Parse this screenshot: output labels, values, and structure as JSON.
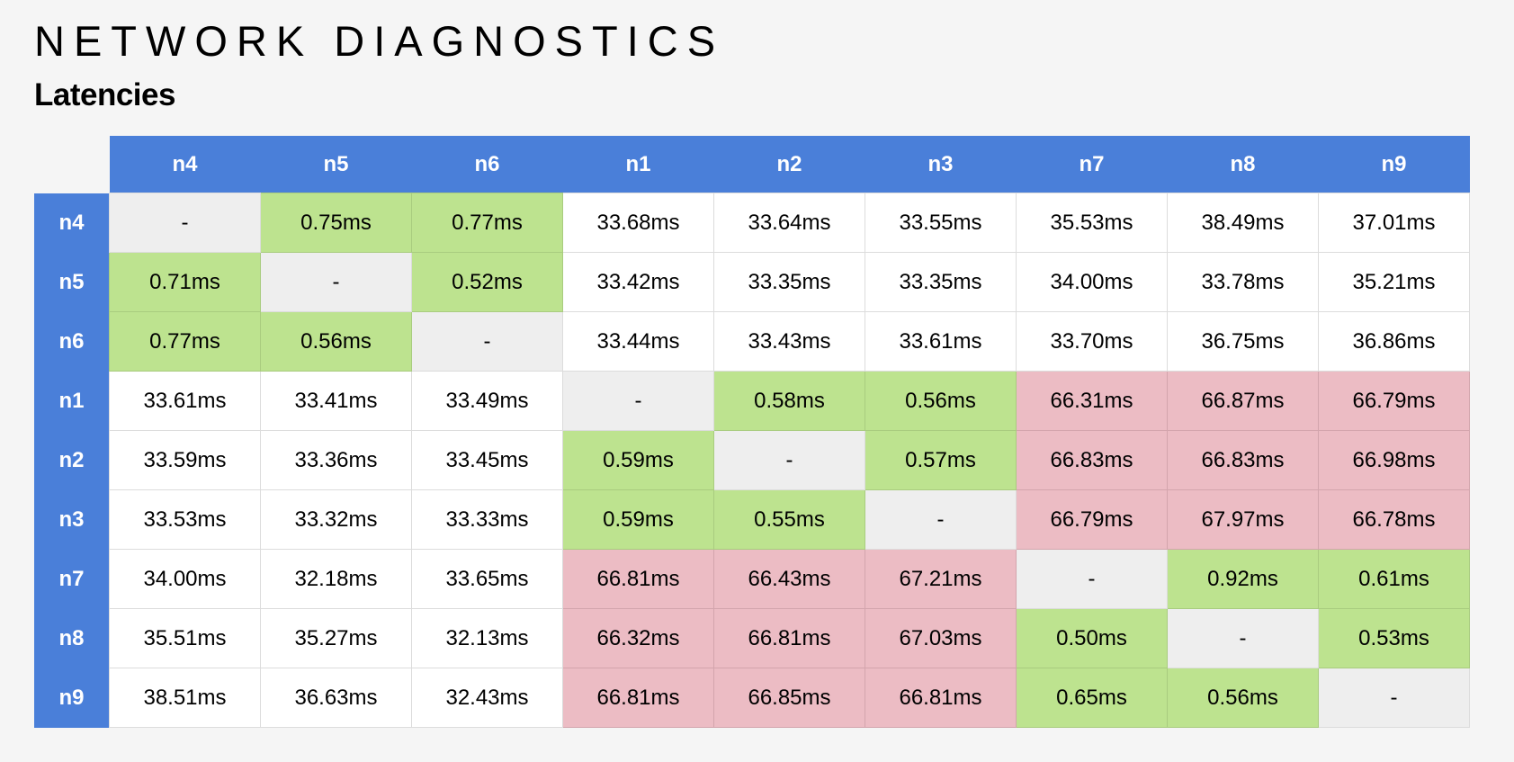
{
  "header": {
    "title": "NETWORK DIAGNOSTICS",
    "subtitle": "Latencies"
  },
  "colors": {
    "header_bg": "#4a7fd9",
    "fast": "#bde38f",
    "slow": "#ecbcc4",
    "self": "#eeeeee",
    "normal": "#ffffff"
  },
  "table": {
    "columns": [
      "n4",
      "n5",
      "n6",
      "n1",
      "n2",
      "n3",
      "n7",
      "n8",
      "n9"
    ],
    "rows": [
      {
        "label": "n4",
        "cells": [
          "-",
          "0.75ms",
          "0.77ms",
          "33.68ms",
          "33.64ms",
          "33.55ms",
          "35.53ms",
          "38.49ms",
          "37.01ms"
        ],
        "status": [
          "self",
          "fast",
          "fast",
          "normal",
          "normal",
          "normal",
          "normal",
          "normal",
          "normal"
        ]
      },
      {
        "label": "n5",
        "cells": [
          "0.71ms",
          "-",
          "0.52ms",
          "33.42ms",
          "33.35ms",
          "33.35ms",
          "34.00ms",
          "33.78ms",
          "35.21ms"
        ],
        "status": [
          "fast",
          "self",
          "fast",
          "normal",
          "normal",
          "normal",
          "normal",
          "normal",
          "normal"
        ]
      },
      {
        "label": "n6",
        "cells": [
          "0.77ms",
          "0.56ms",
          "-",
          "33.44ms",
          "33.43ms",
          "33.61ms",
          "33.70ms",
          "36.75ms",
          "36.86ms"
        ],
        "status": [
          "fast",
          "fast",
          "self",
          "normal",
          "normal",
          "normal",
          "normal",
          "normal",
          "normal"
        ]
      },
      {
        "label": "n1",
        "cells": [
          "33.61ms",
          "33.41ms",
          "33.49ms",
          "-",
          "0.58ms",
          "0.56ms",
          "66.31ms",
          "66.87ms",
          "66.79ms"
        ],
        "status": [
          "normal",
          "normal",
          "normal",
          "self",
          "fast",
          "fast",
          "slow",
          "slow",
          "slow"
        ]
      },
      {
        "label": "n2",
        "cells": [
          "33.59ms",
          "33.36ms",
          "33.45ms",
          "0.59ms",
          "-",
          "0.57ms",
          "66.83ms",
          "66.83ms",
          "66.98ms"
        ],
        "status": [
          "normal",
          "normal",
          "normal",
          "fast",
          "self",
          "fast",
          "slow",
          "slow",
          "slow"
        ]
      },
      {
        "label": "n3",
        "cells": [
          "33.53ms",
          "33.32ms",
          "33.33ms",
          "0.59ms",
          "0.55ms",
          "-",
          "66.79ms",
          "67.97ms",
          "66.78ms"
        ],
        "status": [
          "normal",
          "normal",
          "normal",
          "fast",
          "fast",
          "self",
          "slow",
          "slow",
          "slow"
        ]
      },
      {
        "label": "n7",
        "cells": [
          "34.00ms",
          "32.18ms",
          "33.65ms",
          "66.81ms",
          "66.43ms",
          "67.21ms",
          "-",
          "0.92ms",
          "0.61ms"
        ],
        "status": [
          "normal",
          "normal",
          "normal",
          "slow",
          "slow",
          "slow",
          "self",
          "fast",
          "fast"
        ]
      },
      {
        "label": "n8",
        "cells": [
          "35.51ms",
          "35.27ms",
          "32.13ms",
          "66.32ms",
          "66.81ms",
          "67.03ms",
          "0.50ms",
          "-",
          "0.53ms"
        ],
        "status": [
          "normal",
          "normal",
          "normal",
          "slow",
          "slow",
          "slow",
          "fast",
          "self",
          "fast"
        ]
      },
      {
        "label": "n9",
        "cells": [
          "38.51ms",
          "36.63ms",
          "32.43ms",
          "66.81ms",
          "66.85ms",
          "66.81ms",
          "0.65ms",
          "0.56ms",
          "-"
        ],
        "status": [
          "normal",
          "normal",
          "normal",
          "slow",
          "slow",
          "slow",
          "fast",
          "fast",
          "self"
        ]
      }
    ]
  }
}
